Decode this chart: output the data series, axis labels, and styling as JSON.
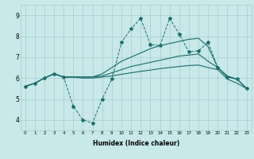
{
  "bg_color": "#c8e8ea",
  "line_color": "#1a6b6b",
  "grid_color": "#a8cccc",
  "xlim_min": -0.5,
  "xlim_max": 23.5,
  "ylim_min": 3.5,
  "ylim_max": 9.5,
  "xticks": [
    0,
    1,
    2,
    3,
    4,
    5,
    6,
    7,
    8,
    9,
    10,
    11,
    12,
    13,
    14,
    15,
    16,
    17,
    18,
    19,
    20,
    21,
    22,
    23
  ],
  "yticks": [
    4,
    5,
    6,
    7,
    8,
    9
  ],
  "xlabel": "Humidex (Indice chaleur)",
  "series_volatile": [
    5.6,
    5.75,
    6.0,
    6.2,
    6.05,
    4.65,
    4.0,
    3.85,
    5.0,
    5.95,
    7.7,
    8.35,
    8.85,
    7.6,
    7.55,
    8.85,
    8.1,
    7.25,
    7.3,
    7.7,
    6.5,
    6.05,
    5.95,
    5.5
  ],
  "series_top": [
    5.6,
    5.75,
    6.0,
    6.2,
    6.05,
    6.05,
    6.05,
    6.05,
    6.2,
    6.5,
    6.8,
    7.0,
    7.2,
    7.4,
    7.55,
    7.65,
    7.75,
    7.85,
    7.9,
    7.5,
    6.5,
    6.1,
    5.95,
    5.5
  ],
  "series_mid": [
    5.6,
    5.75,
    6.0,
    6.2,
    6.05,
    6.05,
    6.05,
    6.05,
    6.1,
    6.25,
    6.4,
    6.55,
    6.65,
    6.75,
    6.85,
    6.95,
    7.05,
    7.1,
    7.15,
    6.8,
    6.5,
    6.05,
    5.95,
    5.5
  ],
  "series_bottom": [
    5.6,
    5.75,
    6.0,
    6.2,
    6.05,
    6.05,
    6.0,
    6.0,
    6.05,
    6.1,
    6.18,
    6.25,
    6.32,
    6.38,
    6.45,
    6.5,
    6.55,
    6.6,
    6.62,
    6.5,
    6.4,
    5.95,
    5.75,
    5.5
  ]
}
